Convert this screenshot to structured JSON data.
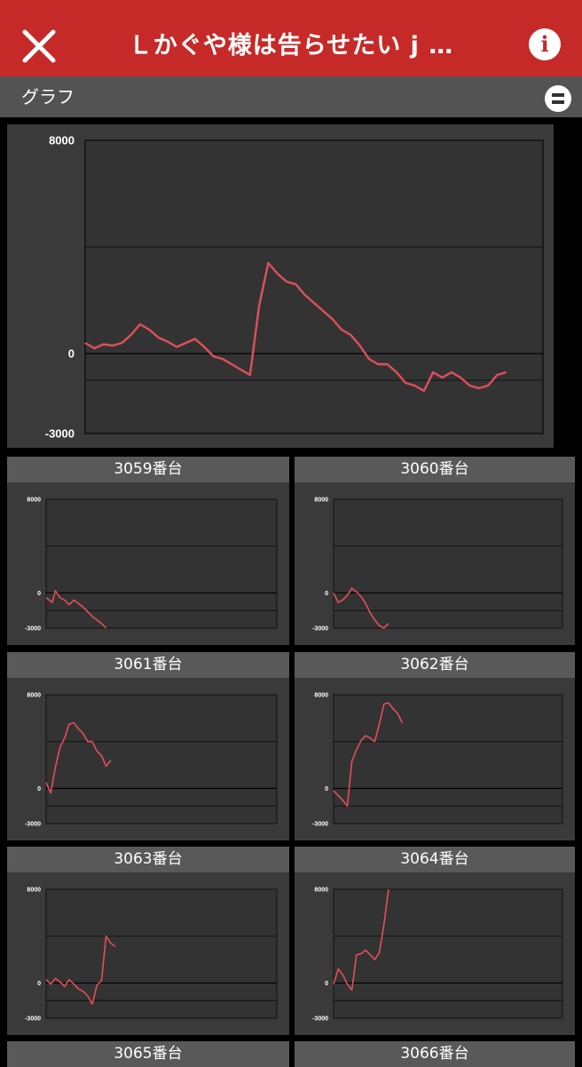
{
  "header": {
    "title": "Ｌかぐや様は告らせたい j …",
    "close_icon": "close-icon",
    "info_icon": "info-icon"
  },
  "section": {
    "label": "グラフ",
    "collapse_icon": "collapse-icon"
  },
  "colors": {
    "header_bg": "#c62a28",
    "line": "#e0505a",
    "panel_bg": "#3a3a3a"
  },
  "chart_data": [
    {
      "type": "line",
      "name": "summary",
      "ylim": [
        -3000,
        8000
      ],
      "yticks": [
        "8000",
        "0",
        "-3000"
      ],
      "grid": [
        4000,
        -1000
      ],
      "points": [
        [
          0,
          400
        ],
        [
          3,
          200
        ],
        [
          6,
          350
        ],
        [
          9,
          300
        ],
        [
          12,
          400
        ],
        [
          15,
          700
        ],
        [
          18,
          1100
        ],
        [
          21,
          900
        ],
        [
          24,
          600
        ],
        [
          27,
          450
        ],
        [
          30,
          250
        ],
        [
          33,
          400
        ],
        [
          36,
          550
        ],
        [
          39,
          250
        ],
        [
          42,
          -100
        ],
        [
          45,
          -200
        ],
        [
          48,
          -400
        ],
        [
          51,
          -600
        ],
        [
          54,
          -800
        ],
        [
          57,
          1800
        ],
        [
          60,
          3400
        ],
        [
          63,
          3000
        ],
        [
          66,
          2700
        ],
        [
          69,
          2600
        ],
        [
          72,
          2200
        ],
        [
          75,
          1900
        ],
        [
          78,
          1600
        ],
        [
          81,
          1300
        ],
        [
          84,
          900
        ],
        [
          87,
          700
        ],
        [
          90,
          300
        ],
        [
          93,
          -200
        ],
        [
          96,
          -400
        ],
        [
          99,
          -400
        ],
        [
          102,
          -700
        ],
        [
          105,
          -1100
        ],
        [
          108,
          -1200
        ],
        [
          111,
          -1400
        ],
        [
          114,
          -700
        ],
        [
          117,
          -900
        ],
        [
          120,
          -700
        ],
        [
          123,
          -900
        ],
        [
          126,
          -1200
        ],
        [
          129,
          -1300
        ],
        [
          132,
          -1200
        ],
        [
          135,
          -800
        ],
        [
          138,
          -700
        ]
      ]
    },
    {
      "type": "line",
      "name": "3059番台",
      "ylim": [
        -3000,
        8000
      ],
      "yticks": [
        "8000",
        "0",
        "-3000"
      ],
      "grid": [
        4000,
        -1500
      ],
      "points": [
        [
          0,
          -400
        ],
        [
          2,
          -600
        ],
        [
          4,
          -800
        ],
        [
          6,
          200
        ],
        [
          9,
          -400
        ],
        [
          12,
          -600
        ],
        [
          15,
          -1000
        ],
        [
          18,
          -600
        ],
        [
          21,
          -900
        ],
        [
          24,
          -1200
        ],
        [
          27,
          -1600
        ],
        [
          30,
          -2000
        ],
        [
          33,
          -2300
        ],
        [
          36,
          -2600
        ],
        [
          39,
          -3000
        ]
      ]
    },
    {
      "type": "line",
      "name": "3060番台",
      "ylim": [
        -3000,
        8000
      ],
      "yticks": [
        "8000",
        "0",
        "-3000"
      ],
      "grid": [
        4000,
        -1500
      ],
      "points": [
        [
          0,
          0
        ],
        [
          3,
          -800
        ],
        [
          6,
          -600
        ],
        [
          9,
          -200
        ],
        [
          12,
          400
        ],
        [
          15,
          100
        ],
        [
          18,
          -300
        ],
        [
          21,
          -900
        ],
        [
          24,
          -1700
        ],
        [
          27,
          -2300
        ],
        [
          30,
          -2800
        ],
        [
          33,
          -3000
        ],
        [
          36,
          -2600
        ]
      ]
    },
    {
      "type": "line",
      "name": "3061番台",
      "ylim": [
        -3000,
        8000
      ],
      "yticks": [
        "8000",
        "0",
        "-3000"
      ],
      "grid": [
        4000,
        -1500
      ],
      "points": [
        [
          0,
          500
        ],
        [
          3,
          -400
        ],
        [
          6,
          1800
        ],
        [
          9,
          3500
        ],
        [
          12,
          4300
        ],
        [
          15,
          5500
        ],
        [
          18,
          5600
        ],
        [
          21,
          5100
        ],
        [
          24,
          4700
        ],
        [
          27,
          4000
        ],
        [
          30,
          4000
        ],
        [
          33,
          3200
        ],
        [
          36,
          2800
        ],
        [
          39,
          1900
        ],
        [
          42,
          2400
        ]
      ]
    },
    {
      "type": "line",
      "name": "3062番台",
      "ylim": [
        -3000,
        8000
      ],
      "yticks": [
        "8000",
        "0",
        "-3000"
      ],
      "grid": [
        4000,
        -1500
      ],
      "points": [
        [
          0,
          -200
        ],
        [
          3,
          -600
        ],
        [
          6,
          -1000
        ],
        [
          9,
          -1500
        ],
        [
          12,
          2300
        ],
        [
          15,
          3300
        ],
        [
          18,
          4100
        ],
        [
          21,
          4500
        ],
        [
          24,
          4300
        ],
        [
          27,
          4000
        ],
        [
          30,
          5500
        ],
        [
          33,
          7200
        ],
        [
          36,
          7300
        ],
        [
          39,
          6800
        ],
        [
          42,
          6400
        ],
        [
          45,
          5600
        ]
      ]
    },
    {
      "type": "line",
      "name": "3063番台",
      "ylim": [
        -3000,
        8000
      ],
      "yticks": [
        "8000",
        "0",
        "-3000"
      ],
      "grid": [
        4000,
        -1500
      ],
      "points": [
        [
          0,
          300
        ],
        [
          3,
          -100
        ],
        [
          6,
          400
        ],
        [
          9,
          100
        ],
        [
          12,
          -300
        ],
        [
          15,
          300
        ],
        [
          18,
          -100
        ],
        [
          21,
          -500
        ],
        [
          24,
          -700
        ],
        [
          27,
          -1100
        ],
        [
          30,
          -1800
        ],
        [
          33,
          -200
        ],
        [
          36,
          200
        ],
        [
          39,
          4000
        ],
        [
          42,
          3400
        ],
        [
          45,
          3100
        ]
      ]
    },
    {
      "type": "line",
      "name": "3064番台",
      "ylim": [
        -3000,
        8000
      ],
      "yticks": [
        "8000",
        "0",
        "-3000"
      ],
      "grid": [
        4000,
        -1500
      ],
      "points": [
        [
          0,
          -100
        ],
        [
          3,
          1200
        ],
        [
          6,
          700
        ],
        [
          9,
          -100
        ],
        [
          12,
          -600
        ],
        [
          15,
          2400
        ],
        [
          18,
          2500
        ],
        [
          21,
          2800
        ],
        [
          24,
          2400
        ],
        [
          27,
          2000
        ],
        [
          30,
          2600
        ],
        [
          33,
          5000
        ],
        [
          36,
          8000
        ]
      ]
    }
  ],
  "cards": [
    {
      "label": "3059番台"
    },
    {
      "label": "3060番台"
    },
    {
      "label": "3061番台"
    },
    {
      "label": "3062番台"
    },
    {
      "label": "3063番台"
    },
    {
      "label": "3064番台"
    },
    {
      "label": "3065番台"
    },
    {
      "label": "3066番台"
    }
  ]
}
